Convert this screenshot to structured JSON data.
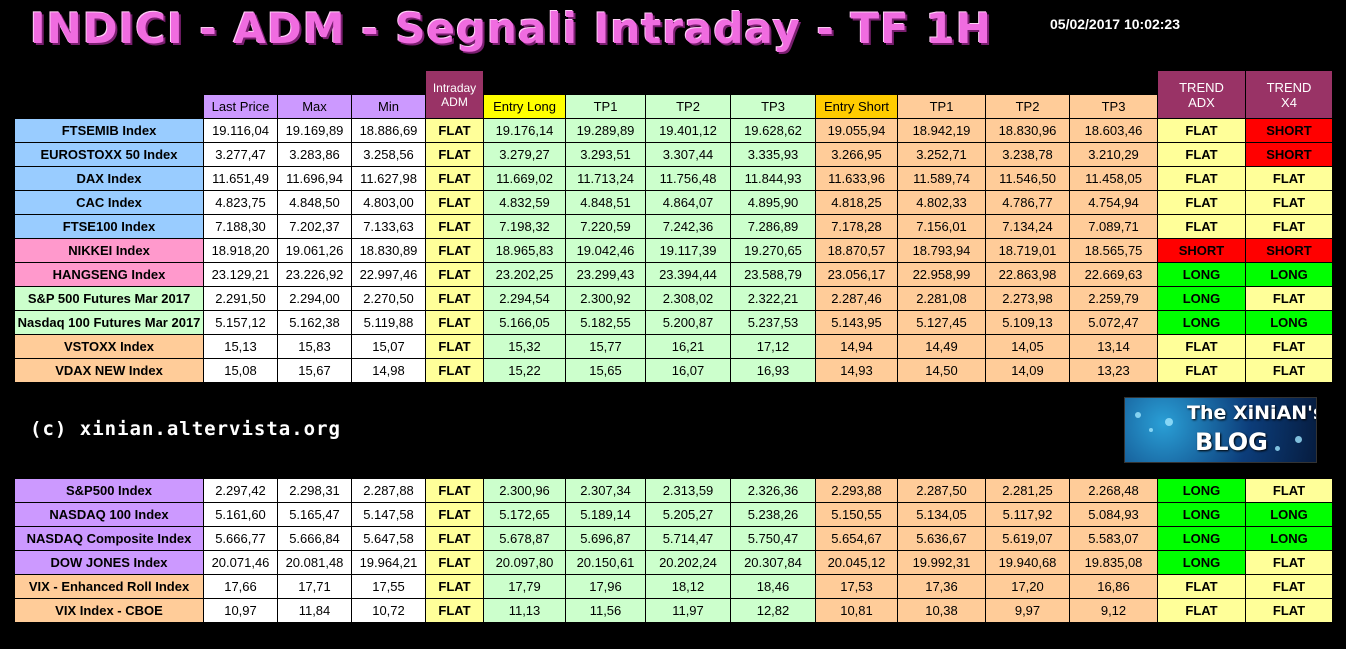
{
  "header": {
    "title": "INDICI - ADM - Segnali Intraday - TF 1H",
    "timestamp": "05/02/2017 10:02:23"
  },
  "columns": {
    "last_price": "Last Price",
    "max": "Max",
    "min": "Min",
    "intraday_adm_1": "Intraday",
    "intraday_adm_2": "ADM",
    "entry_long": "Entry Long",
    "tp1_long": "TP1",
    "tp2_long": "TP2",
    "tp3_long": "TP3",
    "entry_short": "Entry Short",
    "tp1_short": "TP1",
    "tp2_short": "TP2",
    "tp3_short": "TP3",
    "trend_adx_1": "TREND",
    "trend_adx_2": "ADX",
    "trend_x4_1": "TREND",
    "trend_x4_2": "X4"
  },
  "table1": [
    {
      "name": "FTSEMIB Index",
      "group": "blue",
      "values": [
        "19.116,04",
        "19.169,89",
        "18.886,69",
        "FLAT",
        "19.176,14",
        "19.289,89",
        "19.401,12",
        "19.628,62",
        "19.055,94",
        "18.942,19",
        "18.830,96",
        "18.603,46",
        "FLAT",
        "SHORT"
      ]
    },
    {
      "name": "EUROSTOXX 50 Index",
      "group": "blue",
      "values": [
        "3.277,47",
        "3.283,86",
        "3.258,56",
        "FLAT",
        "3.279,27",
        "3.293,51",
        "3.307,44",
        "3.335,93",
        "3.266,95",
        "3.252,71",
        "3.238,78",
        "3.210,29",
        "FLAT",
        "SHORT"
      ]
    },
    {
      "name": "DAX Index",
      "group": "blue",
      "values": [
        "11.651,49",
        "11.696,94",
        "11.627,98",
        "FLAT",
        "11.669,02",
        "11.713,24",
        "11.756,48",
        "11.844,93",
        "11.633,96",
        "11.589,74",
        "11.546,50",
        "11.458,05",
        "FLAT",
        "FLAT"
      ]
    },
    {
      "name": "CAC Index",
      "group": "blue",
      "values": [
        "4.823,75",
        "4.848,50",
        "4.803,00",
        "FLAT",
        "4.832,59",
        "4.848,51",
        "4.864,07",
        "4.895,90",
        "4.818,25",
        "4.802,33",
        "4.786,77",
        "4.754,94",
        "FLAT",
        "FLAT"
      ]
    },
    {
      "name": "FTSE100 Index",
      "group": "blue",
      "values": [
        "7.188,30",
        "7.202,37",
        "7.133,63",
        "FLAT",
        "7.198,32",
        "7.220,59",
        "7.242,36",
        "7.286,89",
        "7.178,28",
        "7.156,01",
        "7.134,24",
        "7.089,71",
        "FLAT",
        "FLAT"
      ]
    },
    {
      "name": "NIKKEI Index",
      "group": "pink",
      "values": [
        "18.918,20",
        "19.061,26",
        "18.830,89",
        "FLAT",
        "18.965,83",
        "19.042,46",
        "19.117,39",
        "19.270,65",
        "18.870,57",
        "18.793,94",
        "18.719,01",
        "18.565,75",
        "SHORT",
        "SHORT"
      ]
    },
    {
      "name": "HANGSENG Index",
      "group": "pink",
      "values": [
        "23.129,21",
        "23.226,92",
        "22.997,46",
        "FLAT",
        "23.202,25",
        "23.299,43",
        "23.394,44",
        "23.588,79",
        "23.056,17",
        "22.958,99",
        "22.863,98",
        "22.669,63",
        "LONG",
        "LONG"
      ]
    },
    {
      "name": "S&P 500 Futures Mar 2017",
      "group": "green",
      "values": [
        "2.291,50",
        "2.294,00",
        "2.270,50",
        "FLAT",
        "2.294,54",
        "2.300,92",
        "2.308,02",
        "2.322,21",
        "2.287,46",
        "2.281,08",
        "2.273,98",
        "2.259,79",
        "LONG",
        "FLAT"
      ]
    },
    {
      "name": "Nasdaq 100 Futures Mar 2017",
      "group": "green",
      "values": [
        "5.157,12",
        "5.162,38",
        "5.119,88",
        "FLAT",
        "5.166,05",
        "5.182,55",
        "5.200,87",
        "5.237,53",
        "5.143,95",
        "5.127,45",
        "5.109,13",
        "5.072,47",
        "LONG",
        "LONG"
      ]
    },
    {
      "name": "VSTOXX Index",
      "group": "orange",
      "values": [
        "15,13",
        "15,83",
        "15,07",
        "FLAT",
        "15,32",
        "15,77",
        "16,21",
        "17,12",
        "14,94",
        "14,49",
        "14,05",
        "13,14",
        "FLAT",
        "FLAT"
      ]
    },
    {
      "name": "VDAX NEW Index",
      "group": "orange",
      "values": [
        "15,08",
        "15,67",
        "14,98",
        "FLAT",
        "15,22",
        "15,65",
        "16,07",
        "16,93",
        "14,93",
        "14,50",
        "14,09",
        "13,23",
        "FLAT",
        "FLAT"
      ]
    }
  ],
  "table2": [
    {
      "name": "S&P500 Index",
      "group": "purple",
      "values": [
        "2.297,42",
        "2.298,31",
        "2.287,88",
        "FLAT",
        "2.300,96",
        "2.307,34",
        "2.313,59",
        "2.326,36",
        "2.293,88",
        "2.287,50",
        "2.281,25",
        "2.268,48",
        "LONG",
        "FLAT"
      ]
    },
    {
      "name": "NASDAQ 100 Index",
      "group": "purple",
      "values": [
        "5.161,60",
        "5.165,47",
        "5.147,58",
        "FLAT",
        "5.172,65",
        "5.189,14",
        "5.205,27",
        "5.238,26",
        "5.150,55",
        "5.134,05",
        "5.117,92",
        "5.084,93",
        "LONG",
        "LONG"
      ]
    },
    {
      "name": "NASDAQ Composite Index",
      "group": "purple",
      "values": [
        "5.666,77",
        "5.666,84",
        "5.647,58",
        "FLAT",
        "5.678,87",
        "5.696,87",
        "5.714,47",
        "5.750,47",
        "5.654,67",
        "5.636,67",
        "5.619,07",
        "5.583,07",
        "LONG",
        "LONG"
      ]
    },
    {
      "name": "DOW JONES Index",
      "group": "purple",
      "values": [
        "20.071,46",
        "20.081,48",
        "19.964,21",
        "FLAT",
        "20.097,80",
        "20.150,61",
        "20.202,24",
        "20.307,84",
        "20.045,12",
        "19.992,31",
        "19.940,68",
        "19.835,08",
        "LONG",
        "FLAT"
      ]
    },
    {
      "name": "VIX - Enhanced Roll Index",
      "group": "orange",
      "values": [
        "17,66",
        "17,71",
        "17,55",
        "FLAT",
        "17,79",
        "17,96",
        "18,12",
        "18,46",
        "17,53",
        "17,36",
        "17,20",
        "16,86",
        "FLAT",
        "FLAT"
      ]
    },
    {
      "name": "VIX Index - CBOE",
      "group": "orange",
      "values": [
        "10,97",
        "11,84",
        "10,72",
        "FLAT",
        "11,13",
        "11,56",
        "11,97",
        "12,82",
        "10,81",
        "10,38",
        "9,97",
        "9,12",
        "FLAT",
        "FLAT"
      ]
    }
  ],
  "credit": "(c) xinian.altervista.org",
  "logo": {
    "line1": "The XiNiAN's",
    "line2": "BLOG"
  }
}
